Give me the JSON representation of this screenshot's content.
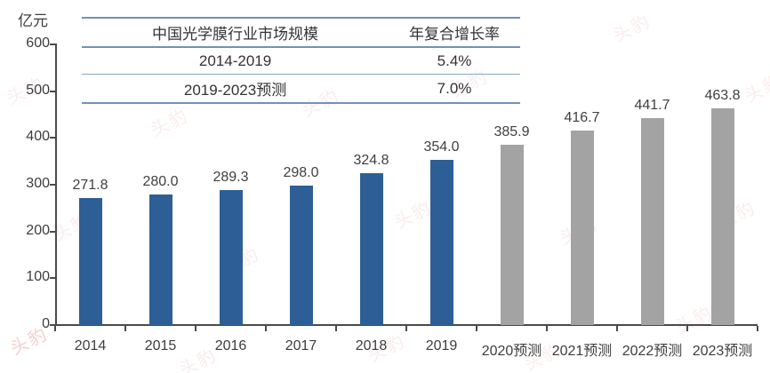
{
  "chart": {
    "unit": "亿元"
  },
  "chart_data": {
    "type": "bar",
    "title": "中国光学膜行业市场规模",
    "unit": "亿元",
    "categories": [
      "2014",
      "2015",
      "2016",
      "2017",
      "2018",
      "2019",
      "2020预测",
      "2021预测",
      "2022预测",
      "2023预测"
    ],
    "values": [
      271.8,
      280.0,
      289.3,
      298.0,
      324.8,
      354.0,
      385.9,
      416.7,
      441.7,
      463.8
    ],
    "value_labels": [
      "271.8",
      "280.0",
      "289.3",
      "298.0",
      "324.8",
      "354.0",
      "385.9",
      "416.7",
      "441.7",
      "463.8"
    ],
    "forecast_start_index": 6,
    "ylim": [
      0,
      600
    ],
    "yticks": [
      0,
      100,
      200,
      300,
      400,
      500,
      600
    ],
    "grid": false,
    "legend": "none",
    "colors": {
      "actual_bar": "#2D5F96",
      "forecast_bar": "#A3A3A3",
      "axis": "#4A4A4A",
      "text": "#3D3D3D",
      "table_line": "#7291B8"
    },
    "inset_table": {
      "header": [
        "中国光学膜行业市场规模",
        "年复合增长率"
      ],
      "rows": [
        [
          "2014-2019",
          "5.4%"
        ],
        [
          "2019-2023预测",
          "7.0%"
        ]
      ]
    }
  },
  "watermark": {
    "text": "头豹",
    "color": "#D9534F"
  }
}
